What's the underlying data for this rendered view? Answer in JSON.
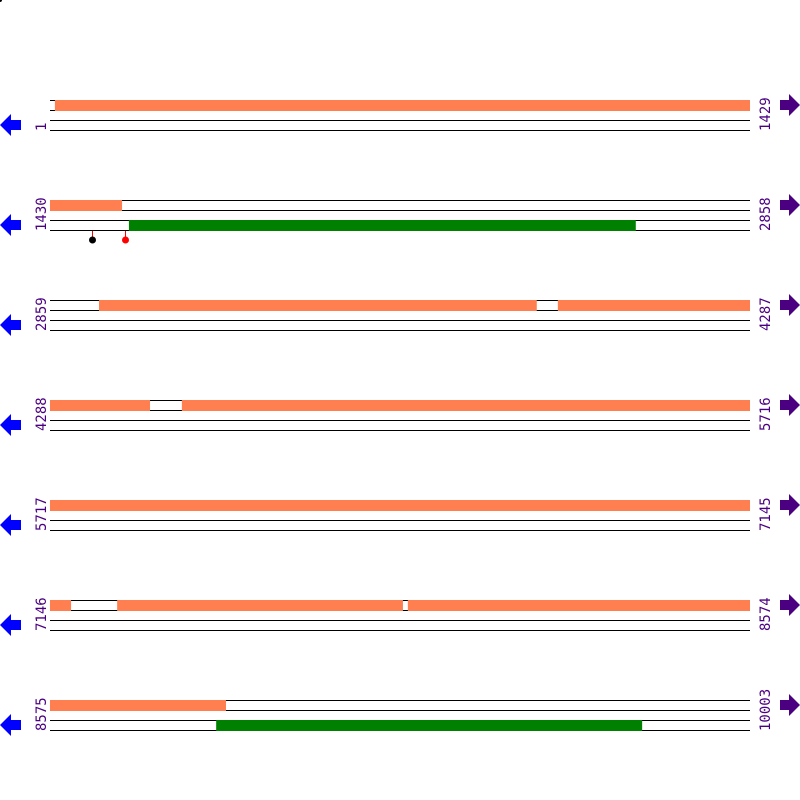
{
  "colors": {
    "track_line": "#000000",
    "orange_feature": "#ff7f50",
    "green_feature": "#008000",
    "left_arrow": "#0000ff",
    "right_arrow": "#4b0082",
    "position_label": "#4b0082",
    "marker_black": "#000000",
    "marker_red": "#ff0000"
  },
  "icons": {
    "left": "arrow-left-icon",
    "right": "arrow-right-icon"
  },
  "rows": [
    {
      "start": "1",
      "end": "1429",
      "start_bp": 1,
      "end_bp": 1429,
      "top_features": [
        [
          11,
          1429
        ]
      ],
      "bottom_features": [],
      "markers": []
    },
    {
      "start": "1430",
      "end": "2858",
      "start_bp": 1430,
      "end_bp": 2858,
      "top_features": [
        [
          1430,
          1577
        ]
      ],
      "bottom_features": [
        [
          1591,
          2625
        ]
      ],
      "markers": [
        {
          "pos": 1516,
          "color": "black"
        },
        {
          "pos": 1583,
          "color": "red"
        }
      ]
    },
    {
      "start": "2859",
      "end": "4287",
      "start_bp": 2859,
      "end_bp": 4287,
      "top_features": [
        [
          2959,
          3852
        ],
        [
          3895,
          4287
        ]
      ],
      "bottom_features": [],
      "markers": []
    },
    {
      "start": "4288",
      "end": "5716",
      "start_bp": 4288,
      "end_bp": 5716,
      "top_features": [
        [
          4288,
          4492
        ],
        [
          4557,
          5716
        ]
      ],
      "bottom_features": [],
      "markers": []
    },
    {
      "start": "5717",
      "end": "7145",
      "start_bp": 5717,
      "end_bp": 7145,
      "top_features": [
        [
          5717,
          7145
        ]
      ],
      "bottom_features": [],
      "markers": []
    },
    {
      "start": "7146",
      "end": "8574",
      "start_bp": 7146,
      "end_bp": 8574,
      "top_features": [
        [
          7146,
          7189
        ],
        [
          7283,
          7866
        ],
        [
          7876,
          8574
        ]
      ],
      "bottom_features": [],
      "markers": []
    },
    {
      "start": "8575",
      "end": "10003",
      "start_bp": 8575,
      "end_bp": 10003,
      "top_features": [
        [
          8575,
          8934
        ]
      ],
      "bottom_features": [
        [
          8914,
          9783
        ]
      ],
      "markers": []
    }
  ]
}
